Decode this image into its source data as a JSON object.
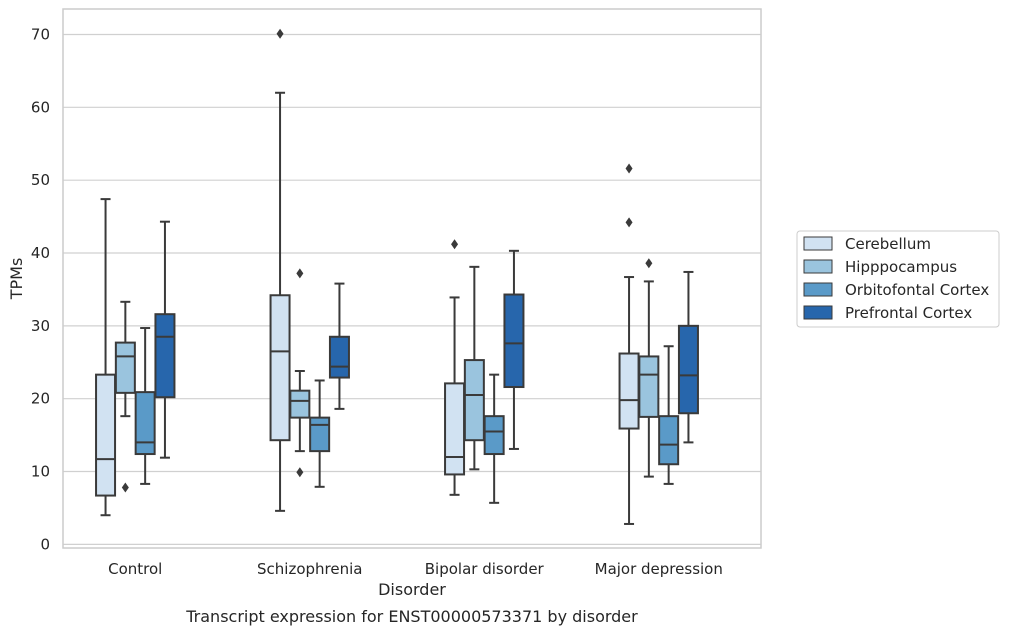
{
  "chart_data": {
    "type": "box",
    "xlabel": "Disorder",
    "ylabel": "TPMs",
    "caption": "Transcript expression for ENST00000573371 by disorder",
    "ylim": [
      -0.5,
      73.5
    ],
    "yticks": [
      0,
      10,
      20,
      30,
      40,
      50,
      60,
      70
    ],
    "grid": "horizontal",
    "legend_position": "right",
    "categories": [
      "Control",
      "Schizophrenia",
      "Bipolar disorder",
      "Major depression"
    ],
    "series": [
      {
        "name": "Cerebellum",
        "color": "#d1e2f2",
        "boxes": [
          {
            "whisker_low": 4.0,
            "q1": 6.7,
            "median": 11.7,
            "q3": 23.3,
            "whisker_high": 47.4,
            "outliers": []
          },
          {
            "whisker_low": 4.6,
            "q1": 14.3,
            "median": 26.5,
            "q3": 34.2,
            "whisker_high": 62.0,
            "outliers": [
              70.1
            ]
          },
          {
            "whisker_low": 6.8,
            "q1": 9.6,
            "median": 12.0,
            "q3": 22.1,
            "whisker_high": 33.9,
            "outliers": [
              41.2
            ]
          },
          {
            "whisker_low": 2.8,
            "q1": 15.9,
            "median": 19.8,
            "q3": 26.2,
            "whisker_high": 36.7,
            "outliers": [
              44.2,
              51.6
            ]
          }
        ]
      },
      {
        "name": "Hipppocampus",
        "color": "#9ac4de",
        "boxes": [
          {
            "whisker_low": 17.6,
            "q1": 20.8,
            "median": 25.8,
            "q3": 27.7,
            "whisker_high": 33.3,
            "outliers": [
              7.8
            ]
          },
          {
            "whisker_low": 12.8,
            "q1": 17.4,
            "median": 19.7,
            "q3": 21.1,
            "whisker_high": 23.8,
            "outliers": [
              37.2,
              9.9
            ]
          },
          {
            "whisker_low": 10.3,
            "q1": 14.3,
            "median": 20.5,
            "q3": 25.3,
            "whisker_high": 38.1,
            "outliers": []
          },
          {
            "whisker_low": 9.3,
            "q1": 17.5,
            "median": 23.3,
            "q3": 25.8,
            "whisker_high": 36.1,
            "outliers": [
              38.6
            ]
          }
        ]
      },
      {
        "name": "Orbitofontal Cortex",
        "color": "#5a9ac8",
        "boxes": [
          {
            "whisker_low": 8.3,
            "q1": 12.4,
            "median": 14.0,
            "q3": 20.9,
            "whisker_high": 29.7,
            "outliers": []
          },
          {
            "whisker_low": 7.9,
            "q1": 12.8,
            "median": 16.4,
            "q3": 17.4,
            "whisker_high": 22.5,
            "outliers": []
          },
          {
            "whisker_low": 5.7,
            "q1": 12.4,
            "median": 15.5,
            "q3": 17.6,
            "whisker_high": 23.3,
            "outliers": []
          },
          {
            "whisker_low": 8.3,
            "q1": 11.0,
            "median": 13.7,
            "q3": 17.6,
            "whisker_high": 27.2,
            "outliers": []
          }
        ]
      },
      {
        "name": "Prefrontal Cortex",
        "color": "#2766ac",
        "boxes": [
          {
            "whisker_low": 11.9,
            "q1": 20.2,
            "median": 28.5,
            "q3": 31.6,
            "whisker_high": 44.3,
            "outliers": []
          },
          {
            "whisker_low": 18.6,
            "q1": 22.9,
            "median": 24.4,
            "q3": 28.5,
            "whisker_high": 35.8,
            "outliers": []
          },
          {
            "whisker_low": 13.1,
            "q1": 21.6,
            "median": 27.6,
            "q3": 34.3,
            "whisker_high": 40.3,
            "outliers": []
          },
          {
            "whisker_low": 14.0,
            "q1": 18.0,
            "median": 23.2,
            "q3": 30.0,
            "whisker_high": 37.4,
            "outliers": []
          }
        ]
      }
    ]
  }
}
